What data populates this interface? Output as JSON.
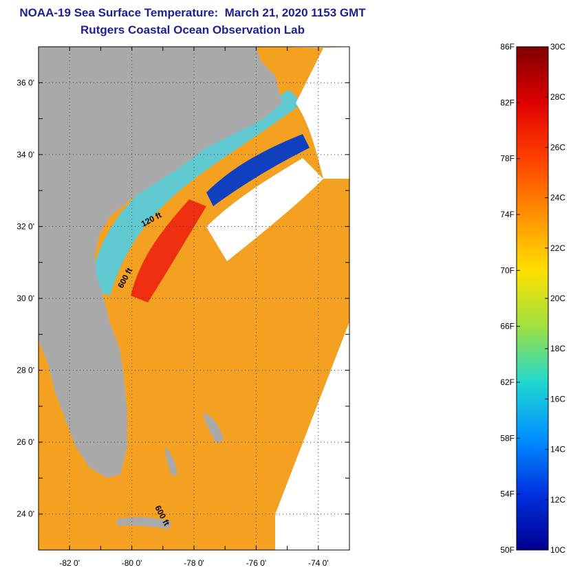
{
  "title": {
    "line1": "NOAA-19 Sea Surface Temperature:  March 21, 2020 1153 GMT",
    "line2": "Rutgers Coastal Ocean Observation Lab"
  },
  "map": {
    "lon_range": [
      -83,
      -73
    ],
    "lat_range": [
      23,
      37
    ],
    "lon_ticks": [
      {
        "value": -82,
        "label": "-82 0'"
      },
      {
        "value": -80,
        "label": "-80 0'"
      },
      {
        "value": -78,
        "label": "-78 0'"
      },
      {
        "value": -76,
        "label": "-76 0'"
      },
      {
        "value": -74,
        "label": "-74 0'"
      }
    ],
    "lat_ticks": [
      {
        "value": 36,
        "label": "36 0'"
      },
      {
        "value": 34,
        "label": "34 0'"
      },
      {
        "value": 32,
        "label": "32 0'"
      },
      {
        "value": 30,
        "label": "30 0'"
      },
      {
        "value": 28,
        "label": "28 0'"
      },
      {
        "value": 26,
        "label": "26 0'"
      },
      {
        "value": 24,
        "label": "24 0'"
      }
    ],
    "contour_labels": [
      "120 ft",
      "600 ft",
      "600 ft"
    ],
    "colors": {
      "land": "#a9a9a9",
      "cloud": "#ffffff",
      "grid": "#444444"
    }
  },
  "colorbar": {
    "f_labels": [
      "86F",
      "82F",
      "78F",
      "74F",
      "70F",
      "66F",
      "62F",
      "58F",
      "54F",
      "50F"
    ],
    "c_labels": [
      "30C",
      "28C",
      "26C",
      "24C",
      "22C",
      "20C",
      "18C",
      "16C",
      "14C",
      "12C",
      "10C"
    ],
    "gradient": [
      "#7f0000",
      "#e00000",
      "#ff4000",
      "#ff9000",
      "#ffe000",
      "#a0e040",
      "#20d8d0",
      "#0090ff",
      "#0030e0",
      "#00008f"
    ]
  }
}
